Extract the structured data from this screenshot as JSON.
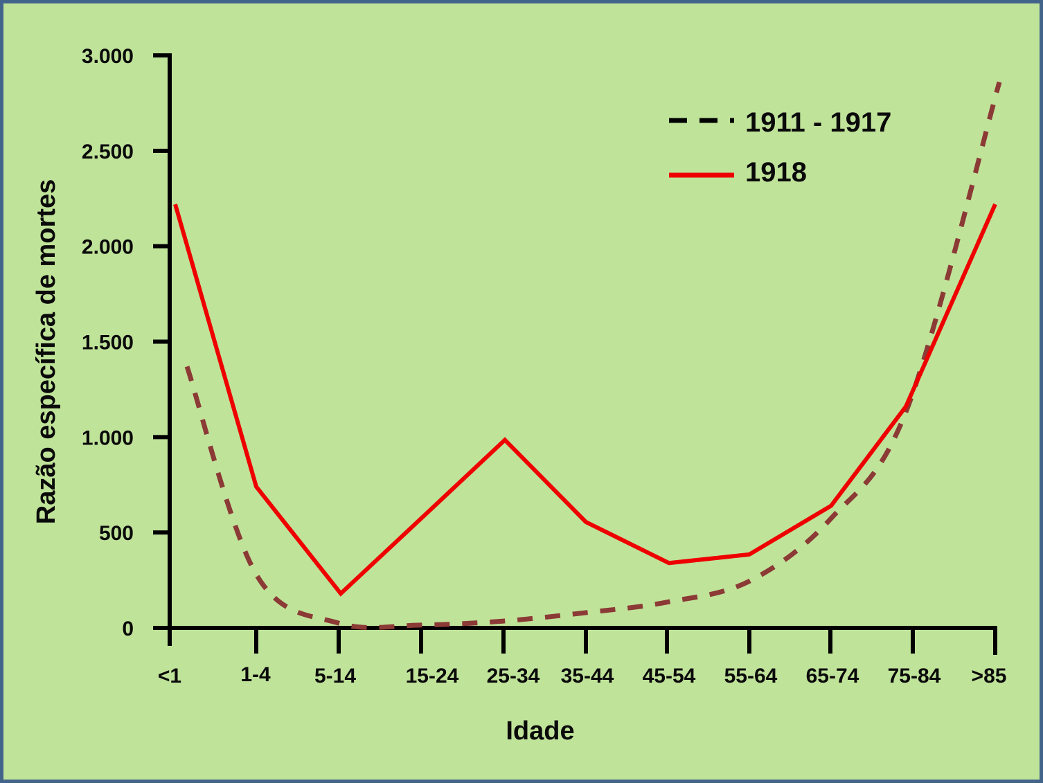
{
  "colors": {
    "background": "#c0e39a",
    "border": "#42648a",
    "axis": "#000000",
    "series_1918": "#ee0000",
    "series_1911_1917": "#8b3a36",
    "legend_dash": "#000000"
  },
  "legend": {
    "items": [
      {
        "label": "1911 - 1917",
        "style": "dashed"
      },
      {
        "label": "1918",
        "style": "solid"
      }
    ]
  },
  "axes": {
    "x_title": "Idade",
    "y_title": "Razão específica de mortes",
    "y_ticks": [
      "0",
      "500",
      "1.000",
      "1.500",
      "2.000",
      "2.500",
      "3.000"
    ],
    "x_ticks": [
      "<1",
      "1-4",
      "5-14",
      "15-24",
      "25-34",
      "35-44",
      "45-54",
      "55-64",
      "65-74",
      "75-84",
      ">85"
    ]
  },
  "chart_data": {
    "type": "line",
    "title": "",
    "xlabel": "Idade",
    "ylabel": "Razão específica de mortes",
    "categories": [
      "<1",
      "1-4",
      "5-14",
      "15-24",
      "25-34",
      "35-44",
      "45-54",
      "55-64",
      "65-74",
      "75-84",
      ">85"
    ],
    "series": [
      {
        "name": "1911 - 1917",
        "style": "dashed",
        "color": "#8b3a36",
        "values": [
          1370,
          280,
          25,
          15,
          36,
          80,
          135,
          245,
          570,
          1150,
          2860
        ]
      },
      {
        "name": "1918",
        "style": "solid",
        "color": "#ee0000",
        "values": [
          2220,
          740,
          180,
          580,
          985,
          555,
          340,
          385,
          640,
          1160,
          2220
        ]
      }
    ],
    "ylim": [
      0,
      3000
    ],
    "y_ticks": [
      0,
      500,
      1000,
      1500,
      2000,
      2500,
      3000
    ],
    "grid": false,
    "legend_position": "upper right (inside plot)"
  }
}
